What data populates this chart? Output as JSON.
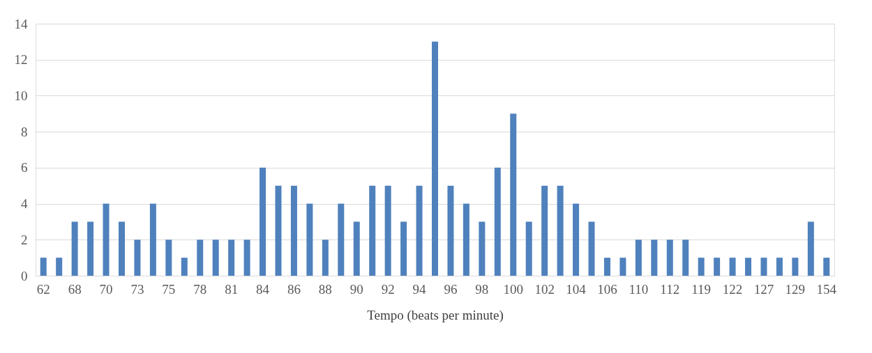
{
  "chart_data": {
    "type": "bar",
    "xlabel": "Tempo (beats per minute)",
    "categories": [
      "62",
      null,
      "68",
      null,
      "70",
      null,
      "73",
      null,
      "75",
      null,
      "78",
      null,
      "81",
      null,
      "84",
      null,
      "86",
      null,
      "88",
      null,
      "90",
      null,
      "92",
      null,
      "94",
      null,
      "96",
      null,
      "98",
      null,
      "100",
      null,
      "102",
      null,
      "104",
      null,
      "106",
      null,
      "110",
      null,
      "112",
      null,
      "119",
      null,
      "122",
      null,
      "127",
      null,
      "129",
      null,
      "154"
    ],
    "values": [
      1,
      1,
      3,
      3,
      4,
      3,
      2,
      4,
      2,
      1,
      2,
      2,
      2,
      2,
      6,
      5,
      5,
      4,
      2,
      4,
      3,
      5,
      5,
      3,
      5,
      13,
      5,
      4,
      3,
      6,
      9,
      3,
      5,
      5,
      4,
      3,
      1,
      1,
      2,
      2,
      2,
      2,
      1,
      1,
      1,
      1,
      1,
      1,
      1,
      3,
      1
    ],
    "color": "#4f81bd",
    "ylim": [
      0,
      14
    ],
    "yticks": [
      0,
      2,
      4,
      6,
      8,
      10,
      12,
      14
    ],
    "grid": "y"
  }
}
